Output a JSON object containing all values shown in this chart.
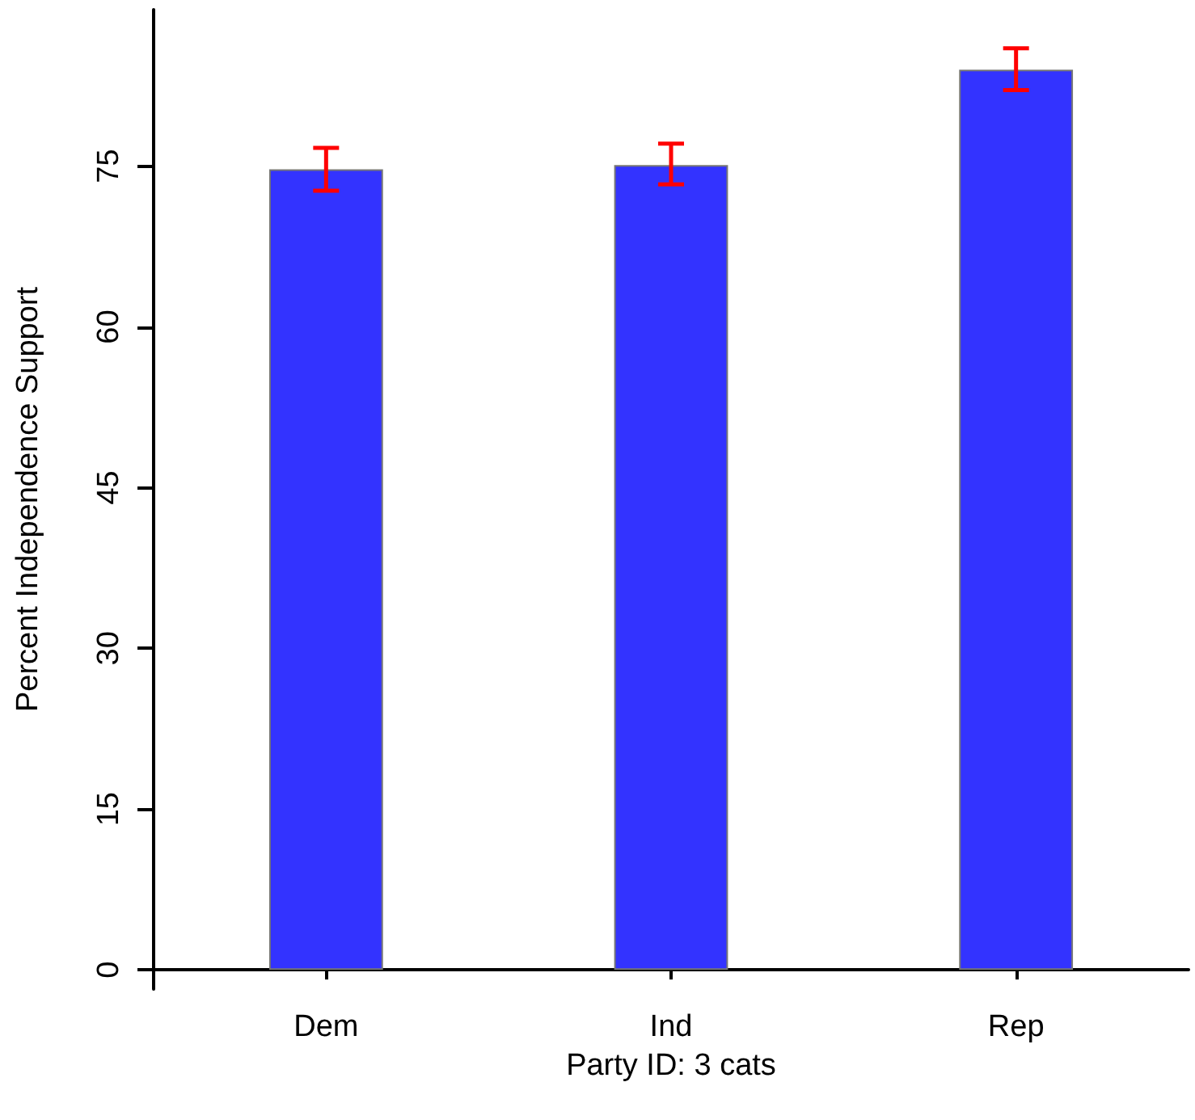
{
  "chart_data": {
    "type": "bar",
    "xlabel": "Party ID: 3 cats",
    "ylabel": "Percent Independence Support",
    "categories": [
      "Dem",
      "Ind",
      "Rep"
    ],
    "values": [
      74.7,
      75.1,
      84.0
    ],
    "errors": [
      [
        72.7,
        76.7
      ],
      [
        73.3,
        77.1
      ],
      [
        82.1,
        86.0
      ]
    ],
    "color": "#3333ff",
    "ylim": [
      -1.8,
      89.6
    ],
    "yticks": [
      0,
      15,
      30,
      45,
      60,
      75
    ],
    "grid": false
  }
}
